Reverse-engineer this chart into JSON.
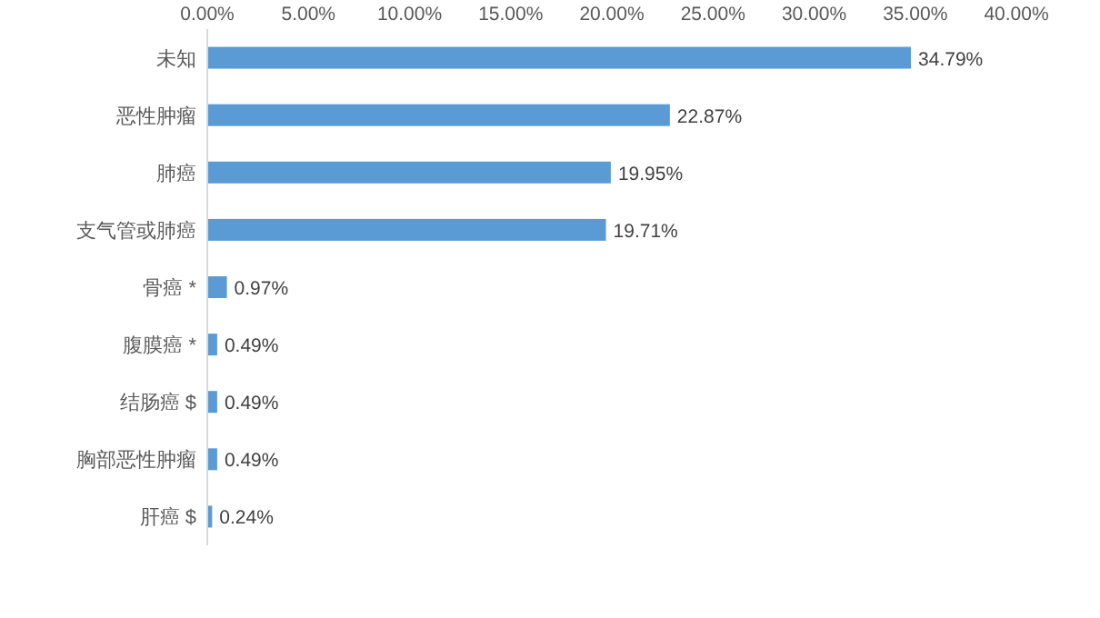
{
  "chart_data": {
    "type": "bar",
    "orientation": "horizontal",
    "categories": [
      "未知",
      "恶性肿瘤",
      "肺癌",
      "支气管或肺癌",
      "骨癌 *",
      "腹膜癌 *",
      "结肠癌 $",
      "胸部恶性肿瘤",
      "肝癌 $"
    ],
    "values": [
      34.79,
      22.87,
      19.95,
      19.71,
      0.97,
      0.49,
      0.49,
      0.49,
      0.24
    ],
    "value_labels": [
      "34.79%",
      "22.87%",
      "19.95%",
      "19.71%",
      "0.97%",
      "0.49%",
      "0.49%",
      "0.49%",
      "0.24%"
    ],
    "color": "#5b9bd5",
    "xlim": [
      0,
      40
    ],
    "xticks": [
      {
        "value": 0,
        "label": "0.00%"
      },
      {
        "value": 5,
        "label": "5.00%"
      },
      {
        "value": 10,
        "label": "10.00%"
      },
      {
        "value": 15,
        "label": "15.00%"
      },
      {
        "value": 20,
        "label": "20.00%"
      },
      {
        "value": 25,
        "label": "25.00%"
      },
      {
        "value": 30,
        "label": "30.00%"
      },
      {
        "value": 35,
        "label": "35.00%"
      },
      {
        "value": 40,
        "label": "40.00%"
      }
    ],
    "grid": false
  }
}
